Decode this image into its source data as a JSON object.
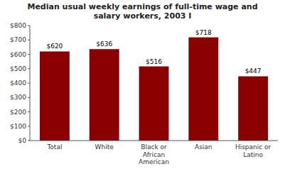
{
  "chart_data": {
    "type": "bar",
    "title": "Median usual weekly earnings of full-time wage and\nsalary workers, 2003 I",
    "categories": [
      "Total",
      "White",
      "Black or\nAfrican\nAmerican",
      "Asian",
      "Hispanic or\nLatino"
    ],
    "values": [
      620,
      636,
      516,
      718,
      447
    ],
    "value_labels": [
      "$620",
      "$636",
      "$516",
      "$718",
      "$447"
    ],
    "data_labels": true,
    "color": "#8B0000",
    "ylim": [
      0,
      800
    ],
    "yticks": [
      {
        "value": 0,
        "label": "$0"
      },
      {
        "value": 100,
        "label": "$100"
      },
      {
        "value": 200,
        "label": "$200"
      },
      {
        "value": 300,
        "label": "$300"
      },
      {
        "value": 400,
        "label": "$400"
      },
      {
        "value": 500,
        "label": "$500"
      },
      {
        "value": 600,
        "label": "$600"
      },
      {
        "value": 700,
        "label": "$700"
      },
      {
        "value": 800,
        "label": "$800"
      }
    ],
    "grid": false
  }
}
